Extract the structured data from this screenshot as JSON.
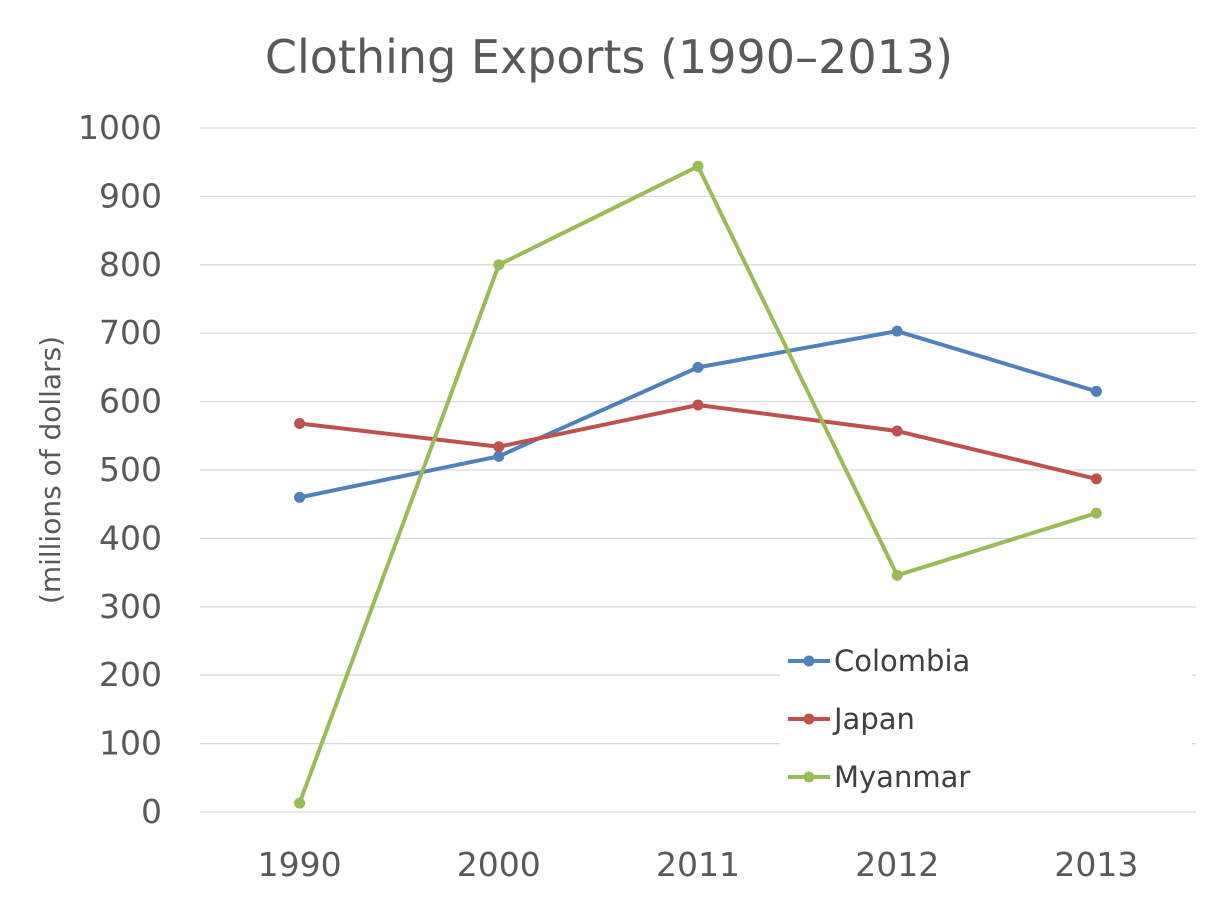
{
  "chart_data": {
    "type": "line",
    "title": "Clothing Exports (1990–2013)",
    "xlabel": "",
    "ylabel": "(millions of dollars)",
    "categories": [
      "1990",
      "2000",
      "2011",
      "2012",
      "2013"
    ],
    "ylim": [
      0,
      1000
    ],
    "yticks": [
      0,
      100,
      200,
      300,
      400,
      500,
      600,
      700,
      800,
      900,
      1000
    ],
    "grid": true,
    "legend_position": "bottom-right",
    "series": [
      {
        "name": "Colombia",
        "color": "#4f81bd",
        "values": [
          460,
          520,
          650,
          703,
          615
        ]
      },
      {
        "name": "Japan",
        "color": "#c0504d",
        "values": [
          568,
          534,
          595,
          557,
          487
        ]
      },
      {
        "name": "Myanmar",
        "color": "#9bbb59",
        "values": [
          13,
          800,
          944,
          346,
          437
        ]
      }
    ]
  }
}
